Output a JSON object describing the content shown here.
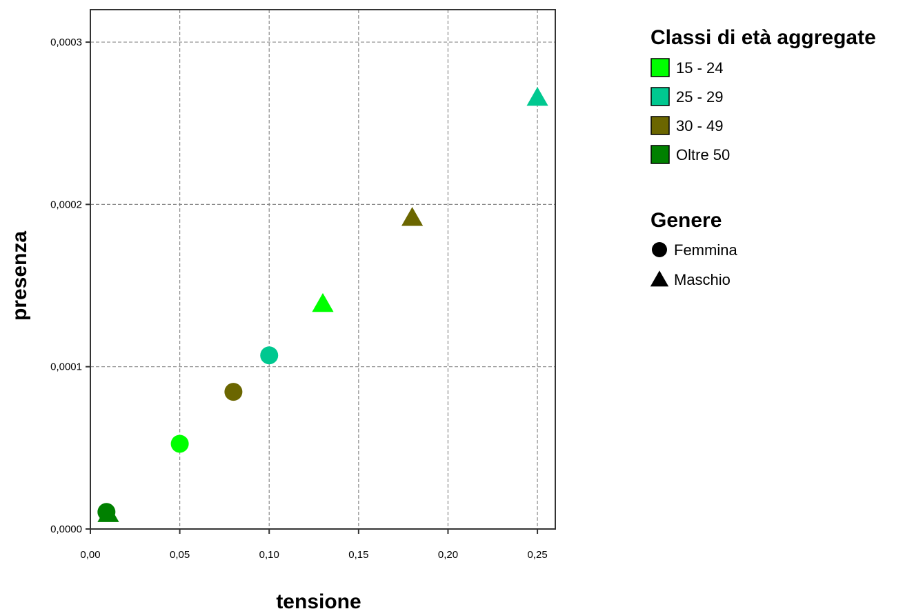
{
  "chart_data": {
    "type": "scatter",
    "xlabel": "tensione",
    "ylabel": "presenza",
    "xlim": [
      0,
      0.26
    ],
    "ylim": [
      0,
      0.00032
    ],
    "x_ticks": [
      {
        "value": 0.0,
        "label": "0,00"
      },
      {
        "value": 0.05,
        "label": "0,05"
      },
      {
        "value": 0.1,
        "label": "0,10"
      },
      {
        "value": 0.15,
        "label": "0,15"
      },
      {
        "value": 0.2,
        "label": "0,20"
      },
      {
        "value": 0.25,
        "label": "0,25"
      }
    ],
    "y_ticks": [
      {
        "value": 0.0,
        "label": "0,0000"
      },
      {
        "value": 0.0001,
        "label": "0,0001"
      },
      {
        "value": 0.0002,
        "label": "0,0002"
      },
      {
        "value": 0.0003,
        "label": "0,0003"
      }
    ],
    "grid": true,
    "legend_placement": "right",
    "legend": {
      "color_title": "Classi di età aggregate",
      "color_entries": [
        {
          "label": "15 - 24",
          "color": "#00ff00"
        },
        {
          "label": "25 - 29",
          "color": "#00c890"
        },
        {
          "label": "30 - 49",
          "color": "#6b6600"
        },
        {
          "label": "Oltre 50",
          "color": "#008000"
        }
      ],
      "shape_title": "Genere",
      "shape_entries": [
        {
          "label": "Femmina",
          "shape": "circle"
        },
        {
          "label": "Maschio",
          "shape": "triangle"
        }
      ]
    },
    "points": [
      {
        "x": 0.01,
        "y": 9.5e-06,
        "group": "Oltre 50",
        "gender": "Maschio",
        "shape": "triangle",
        "color": "#008000"
      },
      {
        "x": 0.009,
        "y": 1.05e-05,
        "group": "Oltre 50",
        "gender": "Femmina",
        "shape": "circle",
        "color": "#008000"
      },
      {
        "x": 0.05,
        "y": 5.25e-05,
        "group": "15 - 24",
        "gender": "Femmina",
        "shape": "circle",
        "color": "#00ff00"
      },
      {
        "x": 0.08,
        "y": 8.45e-05,
        "group": "30 - 49",
        "gender": "Femmina",
        "shape": "circle",
        "color": "#6b6600"
      },
      {
        "x": 0.1,
        "y": 0.000107,
        "group": "25 - 29",
        "gender": "Femmina",
        "shape": "circle",
        "color": "#00c890"
      },
      {
        "x": 0.13,
        "y": 0.000139,
        "group": "15 - 24",
        "gender": "Maschio",
        "shape": "triangle",
        "color": "#00ff00"
      },
      {
        "x": 0.18,
        "y": 0.000192,
        "group": "30 - 49",
        "gender": "Maschio",
        "shape": "triangle",
        "color": "#6b6600"
      },
      {
        "x": 0.25,
        "y": 0.000266,
        "group": "25 - 29",
        "gender": "Maschio",
        "shape": "triangle",
        "color": "#00c890"
      }
    ]
  }
}
